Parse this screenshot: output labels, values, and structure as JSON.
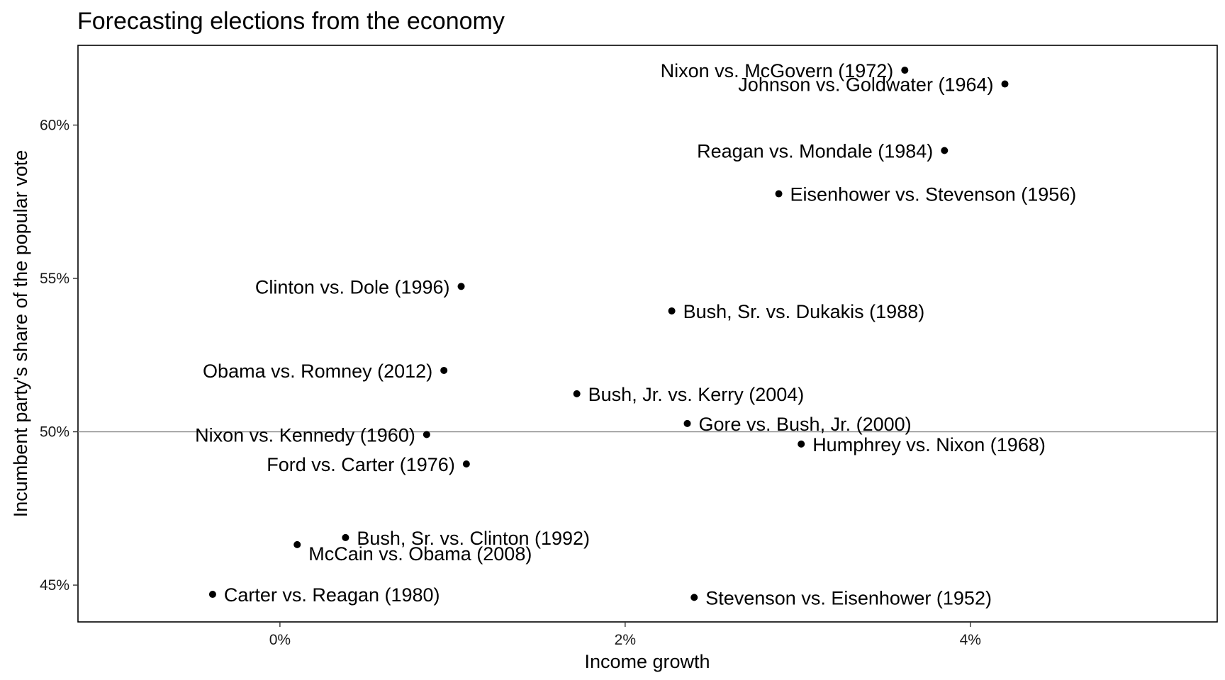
{
  "chart_data": {
    "type": "scatter",
    "title": "Forecasting elections from the economy",
    "xlabel": "Income growth",
    "ylabel": "Incumbent party's share of the popular vote",
    "xlim": [
      -0.0117,
      0.0543
    ],
    "ylim": [
      43.8,
      62.6
    ],
    "x_ticks": [
      0,
      0.02,
      0.04
    ],
    "x_tick_labels": [
      "0%",
      "2%",
      "4%"
    ],
    "y_ticks": [
      45,
      50,
      55,
      60
    ],
    "y_tick_labels": [
      "45%",
      "50%",
      "55%",
      "60%"
    ],
    "reference_line_y": 50,
    "grid": false,
    "points": [
      {
        "label": "Stevenson vs. Eisenhower (1952)",
        "x": 0.024,
        "y": 44.6,
        "label_side": "right"
      },
      {
        "label": "Eisenhower vs. Stevenson (1956)",
        "x": 0.0289,
        "y": 57.76,
        "label_side": "right"
      },
      {
        "label": "Nixon vs. Kennedy (1960)",
        "x": 0.0085,
        "y": 49.91,
        "label_side": "left"
      },
      {
        "label": "Johnson vs. Goldwater (1964)",
        "x": 0.042,
        "y": 61.34,
        "label_side": "left"
      },
      {
        "label": "Humphrey vs. Nixon (1968)",
        "x": 0.0302,
        "y": 49.6,
        "label_side": "right"
      },
      {
        "label": "Nixon vs. McGovern (1972)",
        "x": 0.0362,
        "y": 61.79,
        "label_side": "left"
      },
      {
        "label": "Ford vs. Carter (1976)",
        "x": 0.0108,
        "y": 48.95,
        "label_side": "left"
      },
      {
        "label": "Carter vs. Reagan (1980)",
        "x": -0.0039,
        "y": 44.7,
        "label_side": "right"
      },
      {
        "label": "Reagan vs. Mondale (1984)",
        "x": 0.0385,
        "y": 59.17,
        "label_side": "left"
      },
      {
        "label": "Bush, Sr. vs. Dukakis (1988)",
        "x": 0.0227,
        "y": 53.94,
        "label_side": "right"
      },
      {
        "label": "Bush, Sr. vs. Clinton (1992)",
        "x": 0.0038,
        "y": 46.55,
        "label_side": "right"
      },
      {
        "label": "Clinton vs. Dole (1996)",
        "x": 0.0105,
        "y": 54.74,
        "label_side": "left"
      },
      {
        "label": "Gore vs. Bush, Jr. (2000)",
        "x": 0.0236,
        "y": 50.27,
        "label_side": "right"
      },
      {
        "label": "Bush, Jr. vs. Kerry (2004)",
        "x": 0.0172,
        "y": 51.24,
        "label_side": "right"
      },
      {
        "label": "McCain vs. Obama (2008)",
        "x": 0.001,
        "y": 46.32,
        "label_side": "right-below"
      },
      {
        "label": "Obama vs. Romney (2012)",
        "x": 0.0095,
        "y": 52.0,
        "label_side": "left"
      }
    ]
  }
}
